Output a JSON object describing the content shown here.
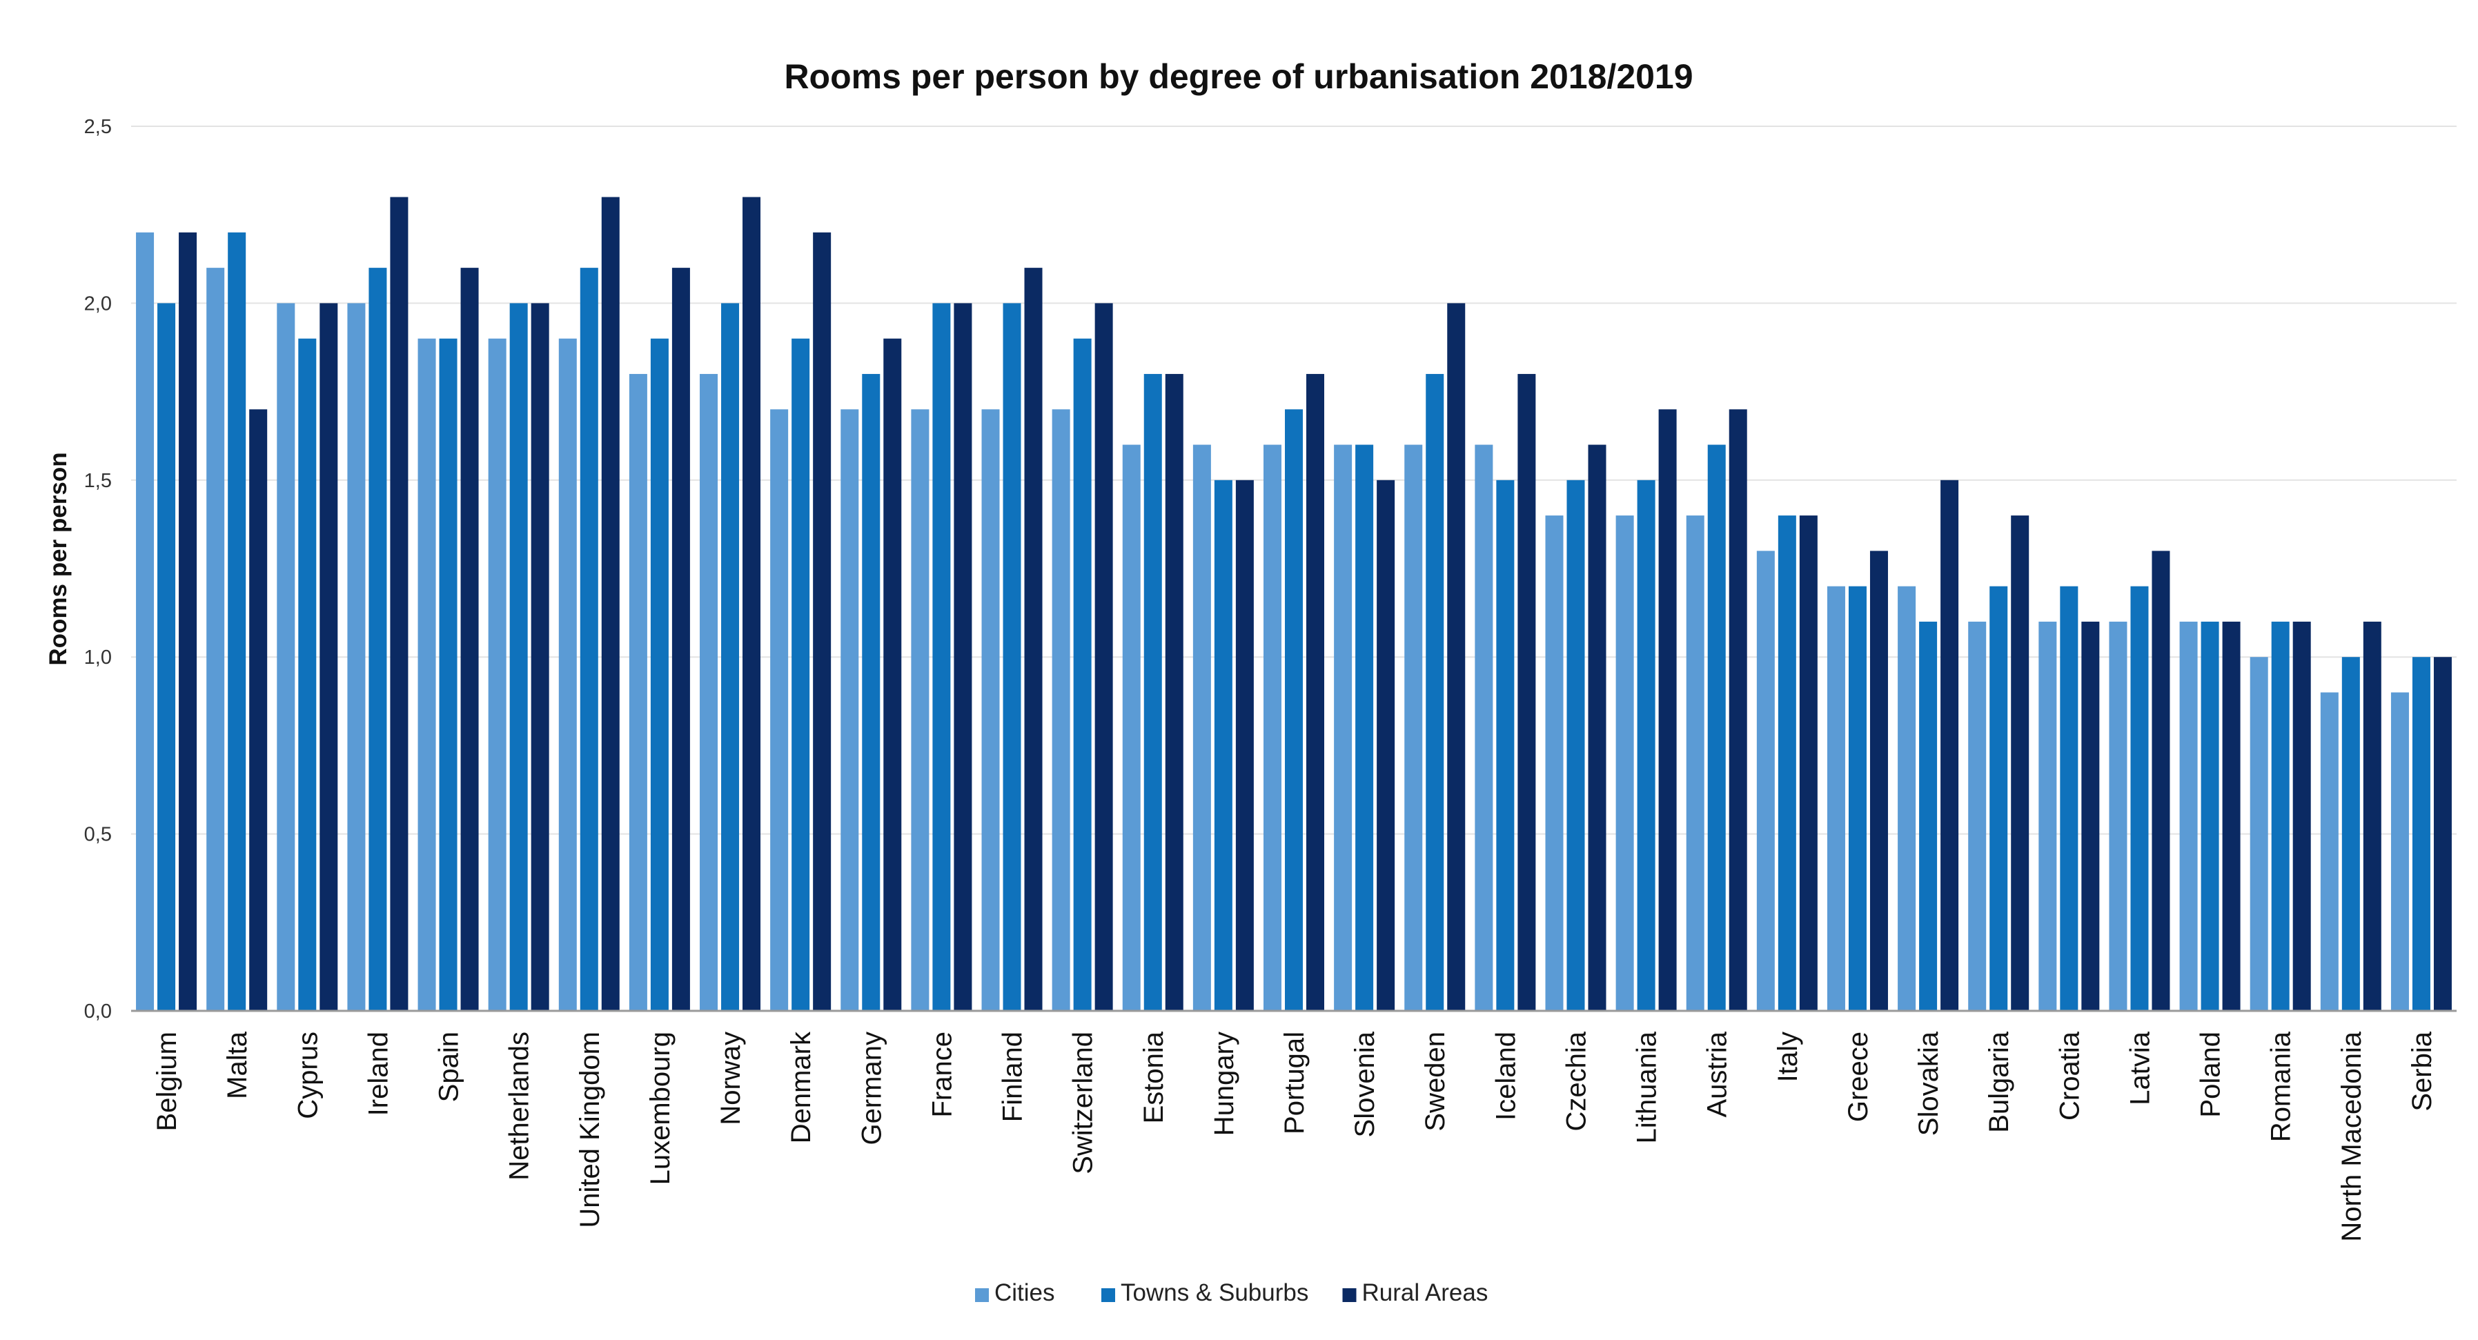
{
  "chart_data": {
    "type": "bar",
    "title": "Rooms per person by degree of urbanisation 2018/2019",
    "xlabel": "",
    "ylabel": "Rooms per person",
    "ylim": [
      0,
      2.5
    ],
    "y_ticks": [
      "0,0",
      "0,5",
      "1,0",
      "1,5",
      "2,0",
      "2,5"
    ],
    "y_tick_values": [
      0,
      0.5,
      1.0,
      1.5,
      2.0,
      2.5
    ],
    "grid": true,
    "legend_position": "bottom",
    "categories": [
      "Belgium",
      "Malta",
      "Cyprus",
      "Ireland",
      "Spain",
      "Netherlands",
      "United Kingdom",
      "Luxembourg",
      "Norway",
      "Denmark",
      "Germany",
      "France",
      "Finland",
      "Switzerland",
      "Estonia",
      "Hungary",
      "Portugal",
      "Slovenia",
      "Sweden",
      "Iceland",
      "Czechia",
      "Lithuania",
      "Austria",
      "Italy",
      "Greece",
      "Slovakia",
      "Bulgaria",
      "Croatia",
      "Latvia",
      "Poland",
      "Romania",
      "North Macedonia",
      "Serbia"
    ],
    "series": [
      {
        "name": "Cities",
        "color": "#5b9bd5",
        "values": [
          2.2,
          2.1,
          2.0,
          2.0,
          1.9,
          1.9,
          1.9,
          1.8,
          1.8,
          1.7,
          1.7,
          1.7,
          1.7,
          1.7,
          1.6,
          1.6,
          1.6,
          1.6,
          1.6,
          1.6,
          1.4,
          1.4,
          1.4,
          1.3,
          1.2,
          1.2,
          1.1,
          1.1,
          1.1,
          1.1,
          1.0,
          0.9,
          0.9
        ]
      },
      {
        "name": "Towns & Suburbs",
        "color": "#0f72bc",
        "values": [
          2.0,
          2.2,
          1.9,
          2.1,
          1.9,
          2.0,
          2.1,
          1.9,
          2.0,
          1.9,
          1.8,
          2.0,
          2.0,
          1.9,
          1.8,
          1.5,
          1.7,
          1.6,
          1.8,
          1.5,
          1.5,
          1.5,
          1.6,
          1.4,
          1.2,
          1.1,
          1.2,
          1.2,
          1.2,
          1.1,
          1.1,
          1.0,
          1.0
        ]
      },
      {
        "name": "Rural Areas",
        "color": "#0b2a63",
        "values": [
          2.2,
          1.7,
          2.0,
          2.3,
          2.1,
          2.0,
          2.3,
          2.1,
          2.3,
          2.2,
          1.9,
          2.0,
          2.1,
          2.0,
          1.8,
          1.5,
          1.8,
          1.5,
          2.0,
          1.8,
          1.6,
          1.7,
          1.7,
          1.4,
          1.3,
          1.5,
          1.4,
          1.1,
          1.3,
          1.1,
          1.1,
          1.1,
          1.0
        ]
      }
    ]
  }
}
